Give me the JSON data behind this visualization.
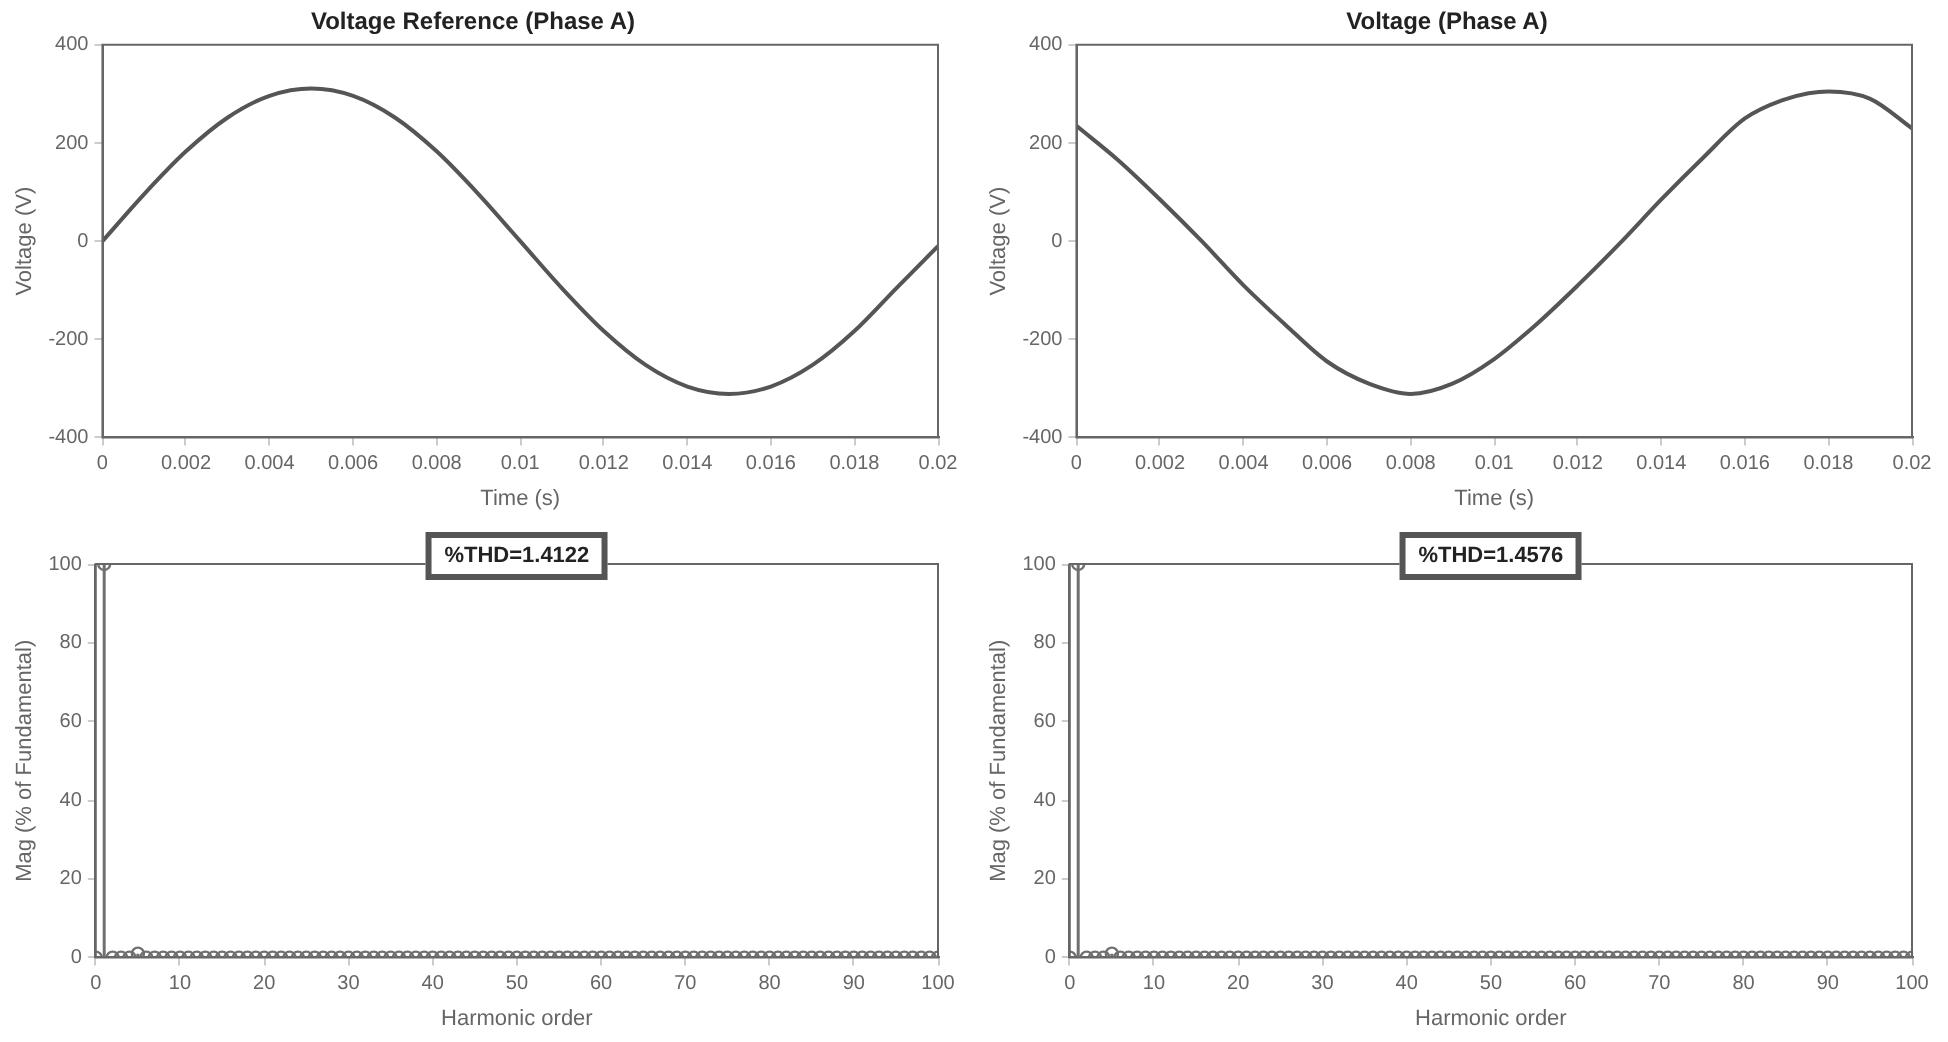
{
  "chart_data": [
    {
      "type": "line",
      "title": "Voltage Reference (Phase A)",
      "xlabel": "Time (s)",
      "ylabel": "Voltage (V)",
      "xlim": [
        0,
        0.02
      ],
      "xticks": [
        0,
        0.002,
        0.004,
        0.006,
        0.008,
        0.01,
        0.012,
        0.014,
        0.016,
        0.018,
        0.02
      ],
      "ylim": [
        -400,
        400
      ],
      "yticks": [
        -400,
        -200,
        0,
        200,
        400
      ],
      "grid": false,
      "x": [
        0,
        0.001,
        0.002,
        0.003,
        0.004,
        0.005,
        0.006,
        0.007,
        0.008,
        0.009,
        0.01,
        0.011,
        0.012,
        0.013,
        0.014,
        0.015,
        0.016,
        0.017,
        0.018,
        0.019,
        0.02
      ],
      "series": [
        {
          "color": "#555555",
          "values": [
            0,
            96,
            183,
            252,
            296,
            311,
            296,
            252,
            183,
            96,
            0,
            -96,
            -183,
            -252,
            -296,
            -311,
            -296,
            -252,
            -183,
            -96,
            -10
          ]
        }
      ]
    },
    {
      "type": "line",
      "title": "Voltage (Phase A)",
      "xlabel": "Time (s)",
      "ylabel": "Voltage (V)",
      "xlim": [
        0,
        0.02
      ],
      "xticks": [
        0,
        0.002,
        0.004,
        0.006,
        0.008,
        0.01,
        0.012,
        0.014,
        0.016,
        0.018,
        0.02
      ],
      "ylim": [
        -400,
        400
      ],
      "yticks": [
        -400,
        -200,
        0,
        200,
        400
      ],
      "grid": false,
      "x": [
        0,
        0.001,
        0.002,
        0.003,
        0.004,
        0.005,
        0.006,
        0.007,
        0.008,
        0.009,
        0.01,
        0.011,
        0.012,
        0.013,
        0.014,
        0.015,
        0.016,
        0.017,
        0.018,
        0.019,
        0.02
      ],
      "series": [
        {
          "color": "#555555",
          "values": [
            235,
            165,
            85,
            0,
            -90,
            -170,
            -245,
            -290,
            -311,
            -290,
            -240,
            -170,
            -90,
            -5,
            85,
            170,
            250,
            290,
            305,
            290,
            230
          ]
        }
      ]
    },
    {
      "type": "lollipop",
      "annotations": [
        "%THD=1.4122"
      ],
      "xlabel": "Harmonic order",
      "ylabel": "Mag (% of Fundamental)",
      "xlim": [
        0,
        100
      ],
      "xticks": [
        0,
        10,
        20,
        30,
        40,
        50,
        60,
        70,
        80,
        90,
        100
      ],
      "ylim": [
        0,
        100
      ],
      "yticks": [
        0,
        20,
        40,
        60,
        80,
        100
      ],
      "grid": false,
      "marker": "circle",
      "x": [
        0,
        1,
        2,
        3,
        4,
        5,
        6,
        7,
        8,
        9,
        10,
        11,
        12,
        13,
        14,
        15,
        16,
        17,
        18,
        19,
        20,
        21,
        22,
        23,
        24,
        25,
        26,
        27,
        28,
        29,
        30,
        31,
        32,
        33,
        34,
        35,
        36,
        37,
        38,
        39,
        40,
        41,
        42,
        43,
        44,
        45,
        46,
        47,
        48,
        49,
        50,
        51,
        52,
        53,
        54,
        55,
        56,
        57,
        58,
        59,
        60,
        61,
        62,
        63,
        64,
        65,
        66,
        67,
        68,
        69,
        70,
        71,
        72,
        73,
        74,
        75,
        76,
        77,
        78,
        79,
        80,
        81,
        82,
        83,
        84,
        85,
        86,
        87,
        88,
        89,
        90,
        91,
        92,
        93,
        94,
        95,
        96,
        97,
        98,
        99,
        100
      ],
      "series": [
        {
          "color": "#707070",
          "values": [
            0,
            100,
            0,
            0,
            0,
            1,
            0,
            0,
            0,
            0,
            0,
            0,
            0,
            0,
            0,
            0,
            0,
            0,
            0,
            0,
            0,
            0,
            0,
            0,
            0,
            0,
            0,
            0,
            0,
            0,
            0,
            0,
            0,
            0,
            0,
            0,
            0,
            0,
            0,
            0,
            0,
            0,
            0,
            0,
            0,
            0,
            0,
            0,
            0,
            0,
            0,
            0,
            0,
            0,
            0,
            0,
            0,
            0,
            0,
            0,
            0,
            0,
            0,
            0,
            0,
            0,
            0,
            0,
            0,
            0,
            0,
            0,
            0,
            0,
            0,
            0,
            0,
            0,
            0,
            0,
            0,
            0,
            0,
            0,
            0,
            0,
            0,
            0,
            0,
            0,
            0,
            0,
            0,
            0,
            0,
            0,
            0,
            0,
            0,
            0,
            0
          ]
        }
      ]
    },
    {
      "type": "lollipop",
      "annotations": [
        "%THD=1.4576"
      ],
      "xlabel": "Harmonic order",
      "ylabel": "Mag (% of Fundamental)",
      "xlim": [
        0,
        100
      ],
      "xticks": [
        0,
        10,
        20,
        30,
        40,
        50,
        60,
        70,
        80,
        90,
        100
      ],
      "ylim": [
        0,
        100
      ],
      "yticks": [
        0,
        20,
        40,
        60,
        80,
        100
      ],
      "grid": false,
      "marker": "circle",
      "x": [
        0,
        1,
        2,
        3,
        4,
        5,
        6,
        7,
        8,
        9,
        10,
        11,
        12,
        13,
        14,
        15,
        16,
        17,
        18,
        19,
        20,
        21,
        22,
        23,
        24,
        25,
        26,
        27,
        28,
        29,
        30,
        31,
        32,
        33,
        34,
        35,
        36,
        37,
        38,
        39,
        40,
        41,
        42,
        43,
        44,
        45,
        46,
        47,
        48,
        49,
        50,
        51,
        52,
        53,
        54,
        55,
        56,
        57,
        58,
        59,
        60,
        61,
        62,
        63,
        64,
        65,
        66,
        67,
        68,
        69,
        70,
        71,
        72,
        73,
        74,
        75,
        76,
        77,
        78,
        79,
        80,
        81,
        82,
        83,
        84,
        85,
        86,
        87,
        88,
        89,
        90,
        91,
        92,
        93,
        94,
        95,
        96,
        97,
        98,
        99,
        100
      ],
      "series": [
        {
          "color": "#707070",
          "values": [
            0,
            100,
            0,
            0,
            0,
            1,
            0,
            0,
            0,
            0,
            0,
            0,
            0,
            0,
            0,
            0,
            0,
            0,
            0,
            0,
            0,
            0,
            0,
            0,
            0,
            0,
            0,
            0,
            0,
            0,
            0,
            0,
            0,
            0,
            0,
            0,
            0,
            0,
            0,
            0,
            0,
            0,
            0,
            0,
            0,
            0,
            0,
            0,
            0,
            0,
            0,
            0,
            0,
            0,
            0,
            0,
            0,
            0,
            0,
            0,
            0,
            0,
            0,
            0,
            0,
            0,
            0,
            0,
            0,
            0,
            0,
            0,
            0,
            0,
            0,
            0,
            0,
            0,
            0,
            0,
            0,
            0,
            0,
            0,
            0,
            0,
            0,
            0,
            0,
            0,
            0,
            0,
            0,
            0,
            0,
            0,
            0,
            0,
            0,
            0,
            0
          ]
        }
      ]
    }
  ]
}
